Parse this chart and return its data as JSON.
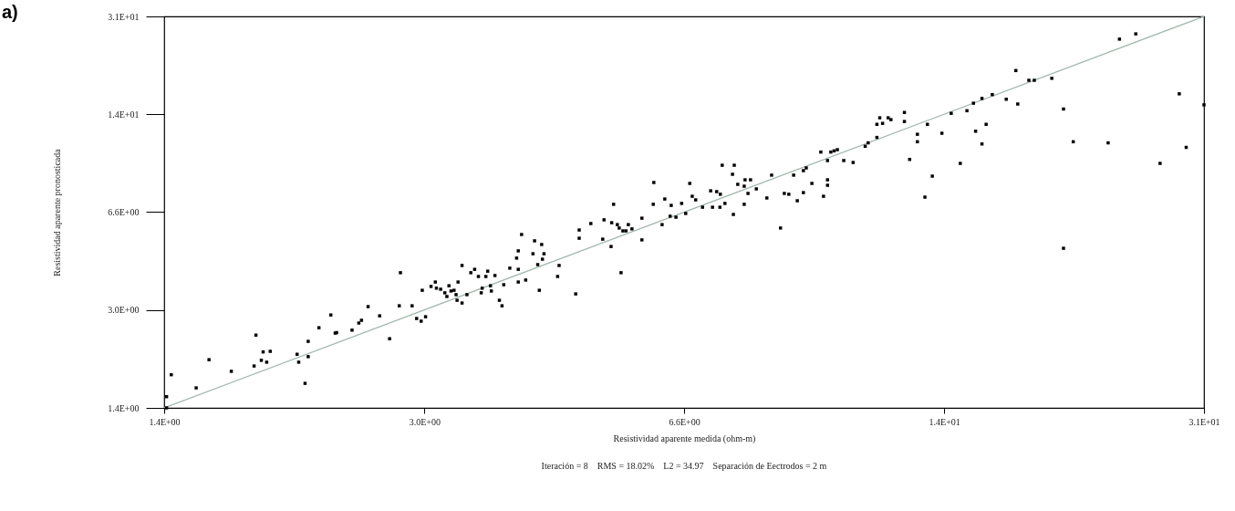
{
  "chart_data": {
    "type": "scatter",
    "xlabel": "Resistividad aparente medida (ohm-m)",
    "ylabel": "Resistividad aparente pronosticada",
    "annotations": [
      "a)",
      "Iteración = 8    RMS = 18.02%    L2 = 34.97    Separación de Eectrodos = 2 m"
    ],
    "log": "xy",
    "xlim": [
      1.4,
      31
    ],
    "ylim": [
      1.4,
      31
    ],
    "xticks": [
      {
        "value": 1.4,
        "label": "1.4E+00"
      },
      {
        "value": 3.04,
        "label": "3.0E+00"
      },
      {
        "value": 6.59,
        "label": "6.6E+00"
      },
      {
        "value": 14.3,
        "label": "1.4E+01"
      },
      {
        "value": 31,
        "label": "3.1E+01"
      }
    ],
    "yticks": [
      {
        "value": 1.4,
        "label": "1.4E+00"
      },
      {
        "value": 3.04,
        "label": "3.0E+00"
      },
      {
        "value": 6.59,
        "label": "6.6E+00"
      },
      {
        "value": 14.3,
        "label": "1.4E+01"
      },
      {
        "value": 31,
        "label": "3.1E+01"
      }
    ],
    "series": [
      {
        "type": "line",
        "color": "#a3b8ad",
        "x": [
          1.4,
          31
        ],
        "values": [
          1.4,
          31
        ]
      },
      {
        "color": "#000000",
        "marker": "square",
        "x": [
          1.41,
          1.41,
          1.43,
          1.54,
          1.6,
          1.71,
          1.84,
          1.83,
          1.88,
          1.87,
          1.9,
          1.92,
          2.08,
          2.09,
          2.15,
          2.15,
          2.13,
          2.22,
          2.3,
          2.33,
          2.34,
          2.45,
          2.5,
          2.52,
          2.57,
          2.66,
          2.74,
          2.83,
          2.82,
          2.93,
          3.02,
          2.97,
          3.01,
          3.05,
          3.1,
          3.14,
          3.15,
          3.19,
          3.23,
          3.27,
          3.29,
          3.32,
          3.25,
          3.34,
          3.36,
          3.35,
          3.4,
          3.4,
          3.45,
          3.49,
          3.53,
          3.57,
          3.6,
          3.61,
          3.67,
          3.65,
          3.7,
          3.71,
          3.75,
          3.8,
          3.83,
          3.85,
          3.92,
          4.0,
          4.02,
          4.02,
          4.02,
          4.06,
          4.11,
          4.2,
          4.22,
          4.26,
          4.28,
          4.31,
          4.34,
          4.32,
          4.54,
          4.52,
          4.77,
          4.82,
          4.82,
          4.99,
          5.17,
          5.19,
          5.3,
          5.31,
          5.34,
          5.4,
          5.43,
          5.49,
          5.54,
          5.58,
          5.64,
          5.81,
          5.81,
          5.46,
          6.01,
          6.02,
          6.17,
          6.22,
          6.32,
          6.34,
          6.43,
          6.54,
          6.62,
          6.7,
          6.75,
          6.82,
          6.96,
          7.13,
          7.17,
          7.26,
          7.34,
          7.33,
          7.38,
          7.44,
          7.61,
          7.63,
          7.65,
          7.73,
          7.88,
          7.9,
          7.88,
          7.97,
          8.03,
          8.17,
          8.43,
          8.55,
          8.78,
          8.88,
          9.0,
          9.13,
          9.23,
          9.4,
          9.4,
          9.48,
          9.64,
          9.9,
          9.98,
          10.1,
          10.1,
          10.1,
          10.2,
          10.3,
          10.4,
          10.6,
          10.9,
          11.3,
          11.4,
          11.7,
          11.7,
          11.8,
          11.9,
          12.1,
          12.2,
          12.7,
          12.7,
          12.9,
          13.2,
          13.2,
          13.6,
          13.8,
          13.5,
          14.2,
          14.6,
          15.0,
          15.3,
          15.7,
          16.0,
          15.6,
          16.0,
          16.2,
          16.5,
          17.2,
          17.8,
          17.7,
          18.4,
          18.7,
          19.7,
          20.4,
          21.0,
          20.4,
          23.3,
          24.1,
          25.3,
          27.2,
          28.8,
          29.4,
          31
        ],
        "values": [
          1.4,
          1.53,
          1.82,
          1.64,
          2.05,
          1.87,
          2.49,
          1.95,
          2.18,
          2.04,
          2.01,
          2.19,
          2.14,
          2.01,
          2.37,
          2.1,
          1.7,
          2.64,
          2.92,
          2.53,
          2.54,
          2.59,
          2.74,
          2.8,
          3.12,
          2.9,
          2.42,
          4.08,
          3.14,
          3.14,
          3.55,
          2.84,
          2.78,
          2.88,
          3.66,
          3.79,
          3.61,
          3.58,
          3.48,
          3.68,
          3.53,
          3.55,
          3.38,
          3.43,
          3.79,
          3.28,
          3.21,
          4.32,
          3.43,
          4.08,
          4.19,
          3.96,
          3.48,
          3.61,
          4.13,
          3.96,
          3.68,
          3.53,
          3.99,
          3.28,
          3.14,
          3.71,
          4.23,
          4.58,
          4.85,
          4.19,
          3.79,
          5.52,
          3.85,
          4.74,
          5.25,
          4.35,
          3.55,
          5.1,
          4.74,
          4.54,
          4.32,
          3.96,
          3.45,
          5.36,
          5.72,
          6.02,
          5.32,
          6.2,
          5.02,
          6.06,
          7.01,
          5.97,
          5.81,
          5.68,
          5.68,
          5.97,
          5.77,
          5.29,
          6.28,
          4.08,
          7.01,
          8.33,
          5.97,
          7.31,
          6.38,
          6.95,
          6.33,
          7.06,
          6.52,
          8.27,
          7.47,
          7.26,
          6.85,
          7.8,
          6.85,
          7.75,
          7.59,
          6.85,
          9.55,
          7.06,
          8.89,
          6.47,
          9.55,
          8.21,
          8.09,
          8.51,
          7.01,
          7.64,
          8.51,
          7.92,
          7.37,
          8.83,
          5.81,
          7.64,
          7.59,
          8.83,
          7.21,
          9.15,
          7.69,
          9.35,
          8.27,
          10.6,
          7.47,
          9.91,
          8.15,
          8.51,
          10.6,
          10.7,
          10.8,
          9.91,
          9.76,
          11.1,
          11.4,
          11.9,
          13.2,
          13.9,
          13.3,
          13.9,
          13.7,
          13.5,
          14.5,
          10.0,
          11.5,
          12.2,
          13.2,
          8.76,
          7.42,
          12.3,
          14.4,
          9.69,
          14.7,
          12.5,
          11.3,
          15.6,
          16.2,
          13.2,
          16.7,
          16.1,
          15.5,
          20.2,
          18.7,
          18.7,
          19.0,
          14.9,
          11.5,
          4.95,
          11.4,
          25.9,
          27.0,
          9.69,
          16.8,
          11.0,
          15.4
        ]
      }
    ]
  }
}
